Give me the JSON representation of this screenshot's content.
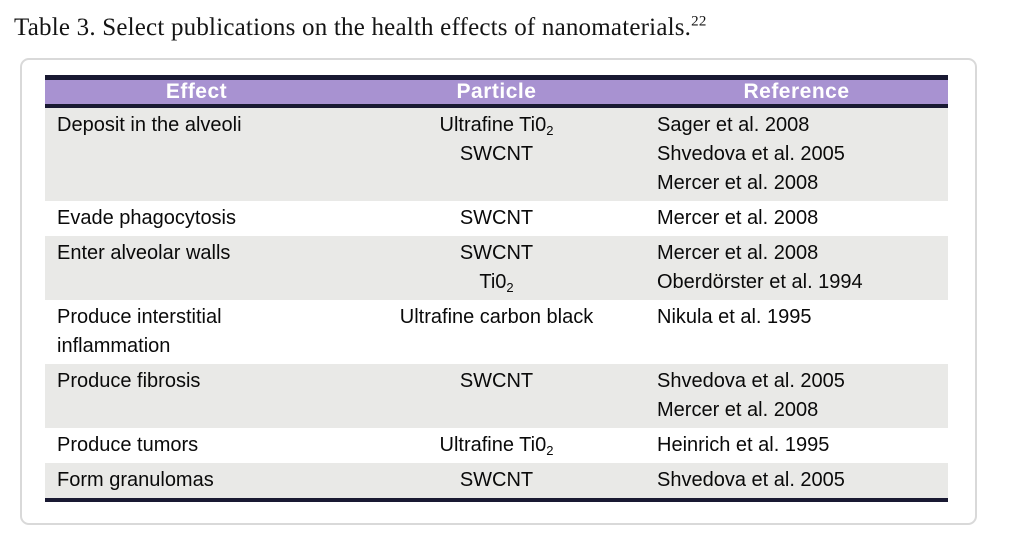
{
  "caption": {
    "text": "Table 3. Select publications on the health effects of nanomaterials.",
    "footnote_mark": "22"
  },
  "colors": {
    "header_bg": "#a892d1",
    "header_text": "#ffffff",
    "rule": "#191932",
    "row_shade": "#e9e9e7",
    "card_border": "#d9d9d9"
  },
  "table": {
    "columns": [
      {
        "label": "Effect"
      },
      {
        "label": "Particle"
      },
      {
        "label": "Reference"
      }
    ],
    "rows": [
      {
        "shaded": true,
        "effect": [
          {
            "text": "Deposit in the alveoli"
          }
        ],
        "particle": [
          {
            "text": "Ultrafine Ti0",
            "sub": "2"
          },
          {
            "text": "SWCNT"
          }
        ],
        "reference": [
          {
            "text": "Sager et al. 2008"
          },
          {
            "text": "Shvedova et al. 2005"
          },
          {
            "text": "Mercer et al. 2008"
          }
        ]
      },
      {
        "shaded": false,
        "effect": [
          {
            "text": "Evade phagocytosis"
          }
        ],
        "particle": [
          {
            "text": "SWCNT"
          }
        ],
        "reference": [
          {
            "text": "Mercer et al. 2008"
          }
        ]
      },
      {
        "shaded": true,
        "effect": [
          {
            "text": "Enter alveolar walls"
          }
        ],
        "particle": [
          {
            "text": "SWCNT"
          },
          {
            "text": "Ti0",
            "sub": "2"
          }
        ],
        "reference": [
          {
            "text": "Mercer et al. 2008"
          },
          {
            "text": "Oberdörster et al. 1994"
          }
        ]
      },
      {
        "shaded": false,
        "effect": [
          {
            "text": "Produce interstitial"
          },
          {
            "text": "inflammation"
          }
        ],
        "particle": [
          {
            "text": "Ultrafine carbon black"
          }
        ],
        "reference": [
          {
            "text": "Nikula et al. 1995"
          }
        ]
      },
      {
        "shaded": true,
        "effect": [
          {
            "text": "Produce fibrosis"
          }
        ],
        "particle": [
          {
            "text": "SWCNT"
          }
        ],
        "reference": [
          {
            "text": "Shvedova et al. 2005"
          },
          {
            "text": "Mercer et al. 2008"
          }
        ]
      },
      {
        "shaded": false,
        "effect": [
          {
            "text": "Produce tumors"
          }
        ],
        "particle": [
          {
            "text": "Ultrafine Ti0",
            "sub": "2"
          }
        ],
        "reference": [
          {
            "text": "Heinrich et al. 1995"
          }
        ]
      },
      {
        "shaded": true,
        "effect": [
          {
            "text": "Form granulomas"
          }
        ],
        "particle": [
          {
            "text": "SWCNT"
          }
        ],
        "reference": [
          {
            "text": "Shvedova et al. 2005"
          }
        ]
      }
    ]
  }
}
